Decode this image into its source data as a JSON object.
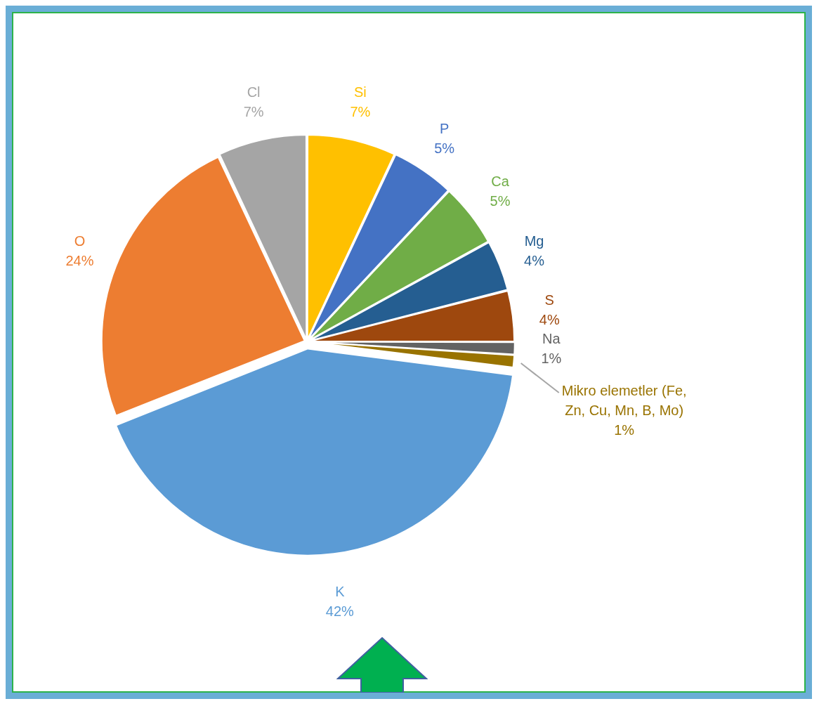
{
  "chart_data": {
    "type": "pie",
    "categories": [
      "Si",
      "P",
      "Ca",
      "Mg",
      "S",
      "Na",
      "Mikro elemetler (Fe, Zn, Cu, Mn, B, Mo)",
      "K",
      "O",
      "Cl"
    ],
    "values": [
      7,
      5,
      5,
      4,
      4,
      1,
      1,
      42,
      24,
      7
    ],
    "value_labels": [
      "7%",
      "5%",
      "5%",
      "4%",
      "4%",
      "1%",
      "1%",
      "42%",
      "24%",
      "7%"
    ],
    "colors": [
      "#ffc000",
      "#4472c4",
      "#70ad47",
      "#255e91",
      "#9e480e",
      "#636363",
      "#997300",
      "#5b9bd5",
      "#ed7d31",
      "#a5a5a5"
    ],
    "legend": false
  }
}
